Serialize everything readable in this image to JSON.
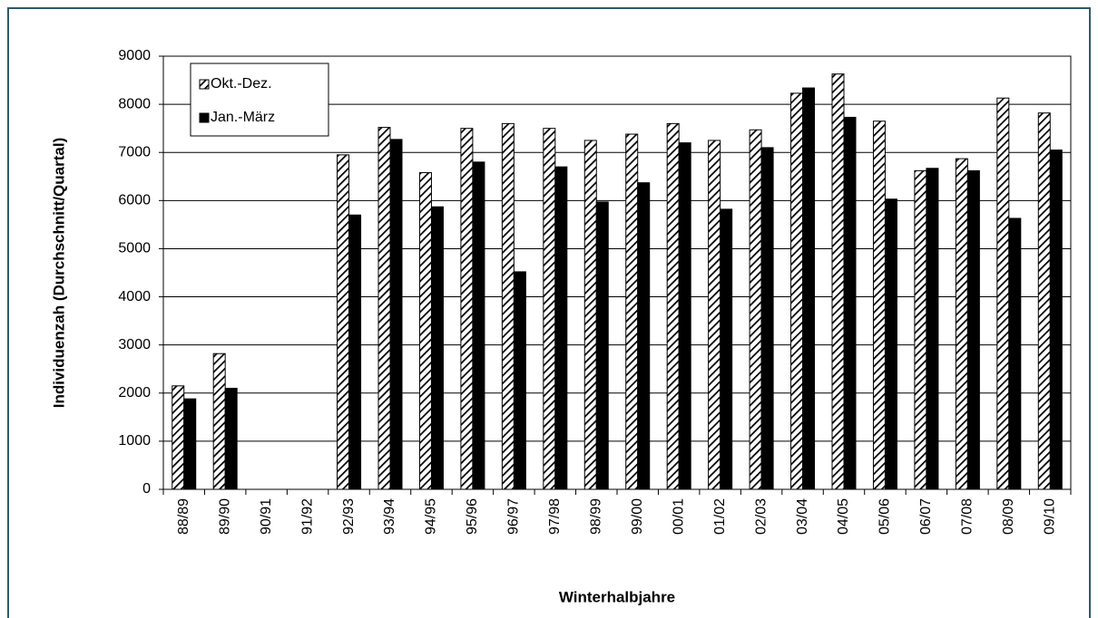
{
  "chart_data": {
    "type": "bar",
    "x_label": "Winterhalbjahre",
    "y_label": "Individuenzah (Durchschnitt/Quartal)",
    "categories": [
      "88/89",
      "89/90",
      "90/91",
      "91/92",
      "92/93",
      "93/94",
      "94/95",
      "95/96",
      "96/97",
      "97/98",
      "98/99",
      "99/00",
      "00/01",
      "01/02",
      "02/03",
      "03/04",
      "04/05",
      "05/06",
      "06/07",
      "07/08",
      "08/09",
      "09/10"
    ],
    "series": [
      {
        "name": "Okt.-Dez.",
        "color": "#000000",
        "pattern": "hatch",
        "values": [
          2150,
          2820,
          null,
          null,
          6950,
          7520,
          6580,
          7500,
          7600,
          7500,
          7250,
          7380,
          7600,
          7250,
          7470,
          8230,
          8630,
          7650,
          6620,
          6870,
          8130,
          7820
        ]
      },
      {
        "name": "Jan.-März",
        "color": "#000000",
        "pattern": "solid",
        "values": [
          1880,
          2100,
          null,
          null,
          5700,
          7270,
          5870,
          6800,
          4520,
          6700,
          5970,
          6370,
          7200,
          5820,
          7100,
          8340,
          7730,
          6030,
          6670,
          6620,
          5630,
          7050
        ]
      }
    ],
    "ylim": [
      0,
      9000
    ],
    "yticks": [
      0,
      1000,
      2000,
      3000,
      4000,
      5000,
      6000,
      7000,
      8000,
      9000
    ],
    "grid": true,
    "legend": "upper left"
  }
}
